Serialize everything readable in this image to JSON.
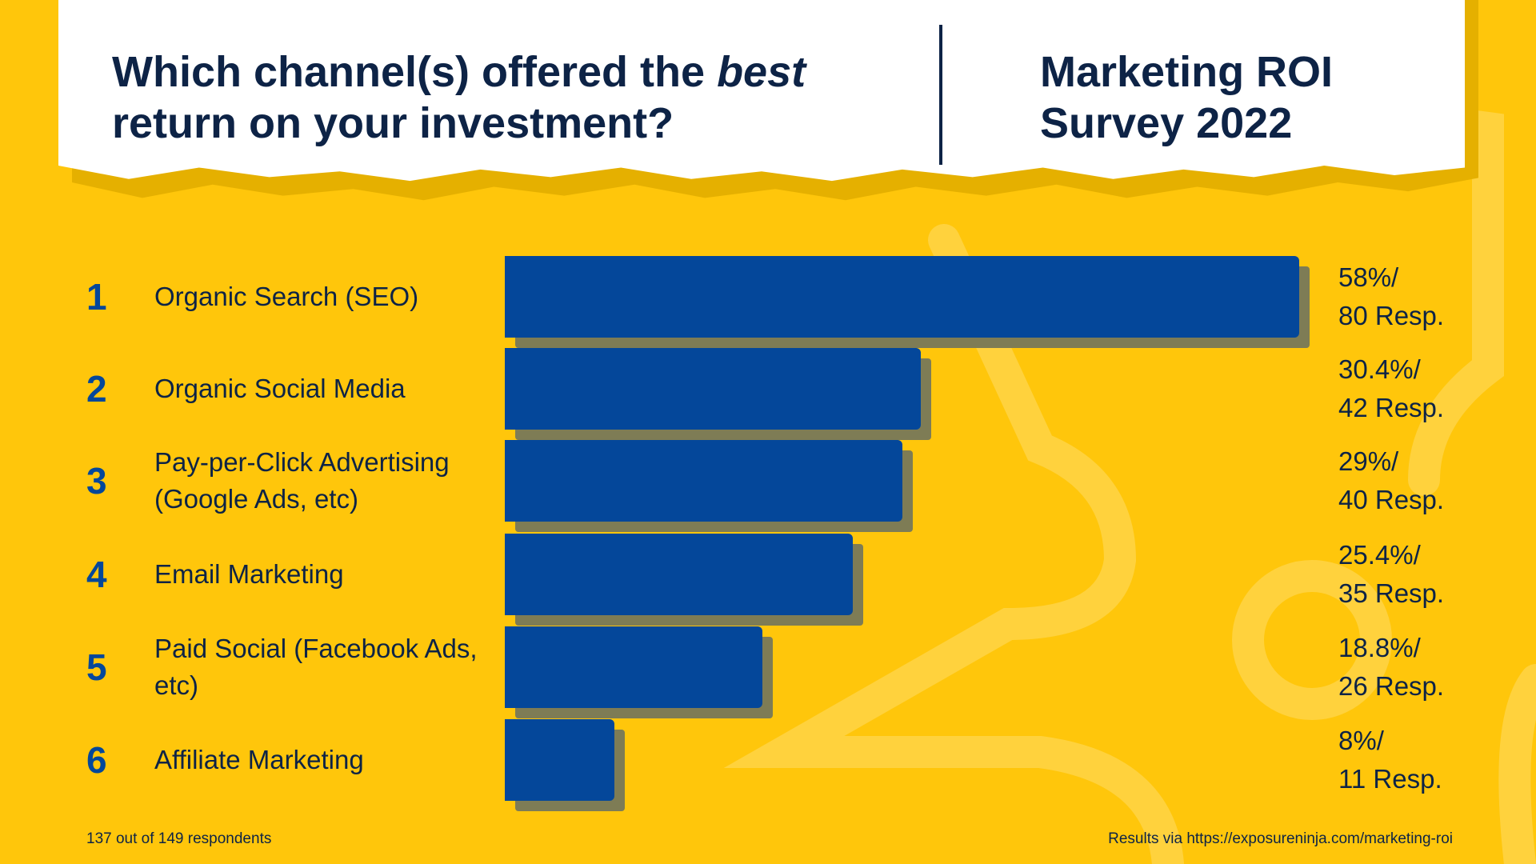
{
  "header": {
    "title_pre": "Which channel(s) offered the ",
    "title_em": "best",
    "title_post": " return on your investment?",
    "right_title": "Marketing ROI Survey 2022"
  },
  "colors": {
    "background": "#FFC60B",
    "bar": "#04479A",
    "bar_shadow": "#7E7C55",
    "text": "#0D2346"
  },
  "chart_data": {
    "type": "bar",
    "orientation": "horizontal",
    "xlim": [
      0,
      58
    ],
    "rows": [
      {
        "rank": "1",
        "label": "Organic Search (SEO)",
        "value": 58,
        "pct_text": "58%/",
        "resp_text": "80 Resp."
      },
      {
        "rank": "2",
        "label": "Organic Social Media",
        "value": 30.4,
        "pct_text": "30.4%/",
        "resp_text": "42 Resp."
      },
      {
        "rank": "3",
        "label": "Pay-per-Click Advertising (Google Ads, etc)",
        "value": 29,
        "pct_text": "29%/",
        "resp_text": "40 Resp."
      },
      {
        "rank": "4",
        "label": "Email Marketing",
        "value": 25.4,
        "pct_text": "25.4%/",
        "resp_text": "35 Resp."
      },
      {
        "rank": "5",
        "label": "Paid Social (Facebook Ads, etc)",
        "value": 18.8,
        "pct_text": "18.8%/",
        "resp_text": "26 Resp."
      },
      {
        "rank": "6",
        "label": "Affiliate Marketing",
        "value": 8,
        "pct_text": "8%/",
        "resp_text": "11 Resp."
      }
    ]
  },
  "footer": {
    "left": "137 out of 149 respondents",
    "right": "Results via https://exposureninja.com/marketing-roi"
  }
}
